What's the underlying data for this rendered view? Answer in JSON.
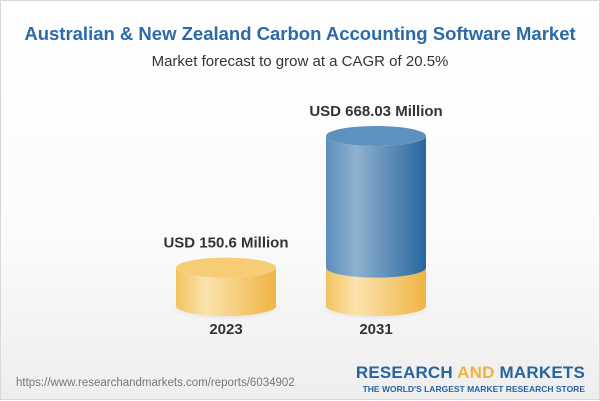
{
  "title": "Australian & New Zealand Carbon Accounting Software Market",
  "subtitle": "Market forecast to grow at a CAGR of 20.5%",
  "chart_data": {
    "type": "bar",
    "style": "3d-cylinder",
    "categories": [
      "2023",
      "2031"
    ],
    "values": [
      150.6,
      668.03
    ],
    "data_labels": [
      "USD 150.6 Million",
      "USD 668.03 Million"
    ],
    "unit": "USD Million",
    "colors": {
      "base": "#f3c25a",
      "growth": "#3f7bb0"
    },
    "grid": false
  },
  "footer": {
    "url": "https://www.researchandmarkets.com/reports/6034902",
    "logo_part1": "RESEARCH ",
    "logo_part2": "AND",
    "logo_part3": " MARKETS",
    "logo_tagline": "THE WORLD'S LARGEST MARKET RESEARCH STORE"
  }
}
